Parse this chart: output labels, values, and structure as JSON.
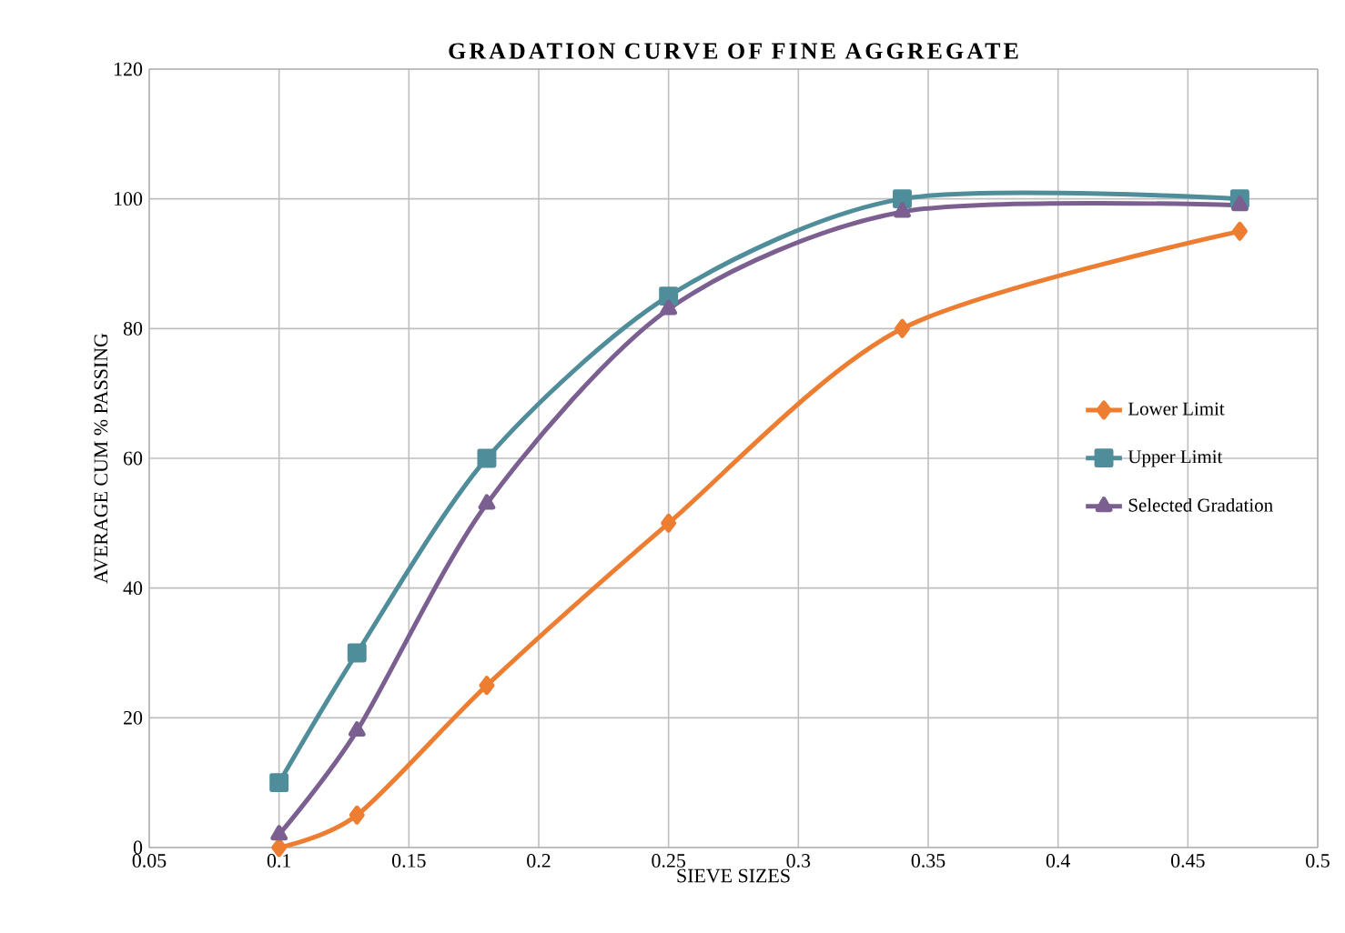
{
  "chart_data": {
    "type": "line",
    "title": "GRADATION CURVE OF FINE AGGREGATE",
    "xlabel": "SIEVE SIZES",
    "ylabel": "AVERAGE  CUM % PASSING",
    "x": [
      0.1,
      0.13,
      0.18,
      0.25,
      0.34,
      0.47
    ],
    "series": [
      {
        "name": "Lower Limit",
        "color": "#ed7d31",
        "marker": "diamond",
        "values": [
          0,
          5,
          25,
          50,
          80,
          95
        ]
      },
      {
        "name": "Upper Limit",
        "color": "#4e8d99",
        "marker": "square",
        "values": [
          10,
          30,
          60,
          85,
          100,
          100
        ]
      },
      {
        "name": "Selected Gradation",
        "color": "#7a5f90",
        "marker": "triangle",
        "values": [
          2,
          18,
          53,
          83,
          98,
          99
        ]
      }
    ],
    "xlim": [
      0.05,
      0.5
    ],
    "xticks": [
      0.05,
      0.1,
      0.15,
      0.2,
      0.25,
      0.3,
      0.35,
      0.4,
      0.45,
      0.5
    ],
    "ylim": [
      0,
      120
    ],
    "yticks": [
      0,
      20,
      40,
      60,
      80,
      100,
      120
    ],
    "grid": true,
    "legend": "right"
  }
}
